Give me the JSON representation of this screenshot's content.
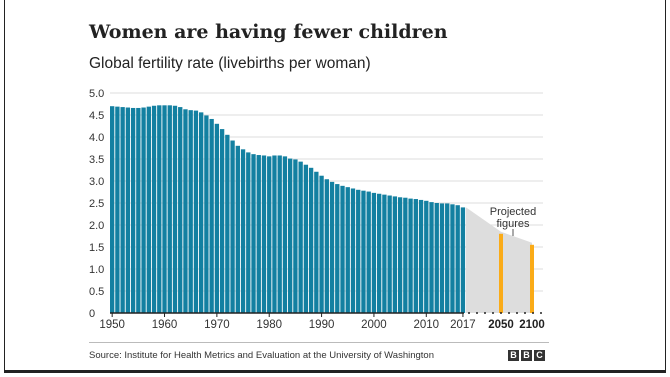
{
  "title": "Women are having fewer children",
  "subtitle": "Global fertility rate (livebirths per woman)",
  "source": "Source: Institute for Health Metrics and Evaluation at the University of Washington",
  "logo": [
    "B",
    "B",
    "C"
  ],
  "colors": {
    "bars": "#1380A1",
    "projected": "#FAAB18",
    "projection_band": "#DDDDDD",
    "grid": "#DDDDDD",
    "text": "#222222"
  },
  "chart_data": {
    "type": "bar",
    "title": "Women are having fewer children",
    "subtitle": "Global fertility rate (livebirths per woman)",
    "ylim": [
      0,
      5.0
    ],
    "y_ticks": [
      0,
      0.5,
      1.0,
      1.5,
      2.0,
      2.5,
      3.0,
      3.5,
      4.0,
      4.5,
      5.0
    ],
    "y_tick_labels": [
      "0",
      "0.5",
      "1.0",
      "1.5",
      "2.0",
      "2.5",
      "3.0",
      "3.5",
      "4.0",
      "4.5",
      "5.0"
    ],
    "x_tick_labels": [
      "1950",
      "1960",
      "1970",
      "1980",
      "1990",
      "2000",
      "2010",
      "2017"
    ],
    "grid": true,
    "series": [
      {
        "x": [
          1950,
          1951,
          1952,
          1953,
          1954,
          1955,
          1956,
          1957,
          1958,
          1959,
          1960,
          1961,
          1962,
          1963,
          1964,
          1965,
          1966,
          1967,
          1968,
          1969,
          1970,
          1971,
          1972,
          1973,
          1974,
          1975,
          1976,
          1977,
          1978,
          1979,
          1980,
          1981,
          1982,
          1983,
          1984,
          1985,
          1986,
          1987,
          1988,
          1989,
          1990,
          1991,
          1992,
          1993,
          1994,
          1995,
          1996,
          1997,
          1998,
          1999,
          2000,
          2001,
          2002,
          2003,
          2004,
          2005,
          2006,
          2007,
          2008,
          2009,
          2010,
          2011,
          2012,
          2013,
          2014,
          2015,
          2016,
          2017
        ],
        "values": [
          4.7,
          4.69,
          4.68,
          4.67,
          4.66,
          4.66,
          4.67,
          4.69,
          4.71,
          4.72,
          4.72,
          4.72,
          4.71,
          4.68,
          4.63,
          4.61,
          4.6,
          4.56,
          4.49,
          4.41,
          4.3,
          4.18,
          4.05,
          3.92,
          3.8,
          3.72,
          3.65,
          3.61,
          3.59,
          3.58,
          3.56,
          3.58,
          3.58,
          3.56,
          3.51,
          3.49,
          3.44,
          3.37,
          3.3,
          3.21,
          3.12,
          3.04,
          2.98,
          2.93,
          2.89,
          2.86,
          2.83,
          2.8,
          2.78,
          2.76,
          2.73,
          2.71,
          2.69,
          2.67,
          2.65,
          2.63,
          2.62,
          2.6,
          2.59,
          2.57,
          2.55,
          2.52,
          2.5,
          2.49,
          2.49,
          2.47,
          2.45,
          2.4
        ]
      },
      {
        "x": [
          "2050",
          "2100"
        ],
        "values": [
          1.8,
          1.55
        ],
        "label": "Projected figures"
      }
    ]
  }
}
